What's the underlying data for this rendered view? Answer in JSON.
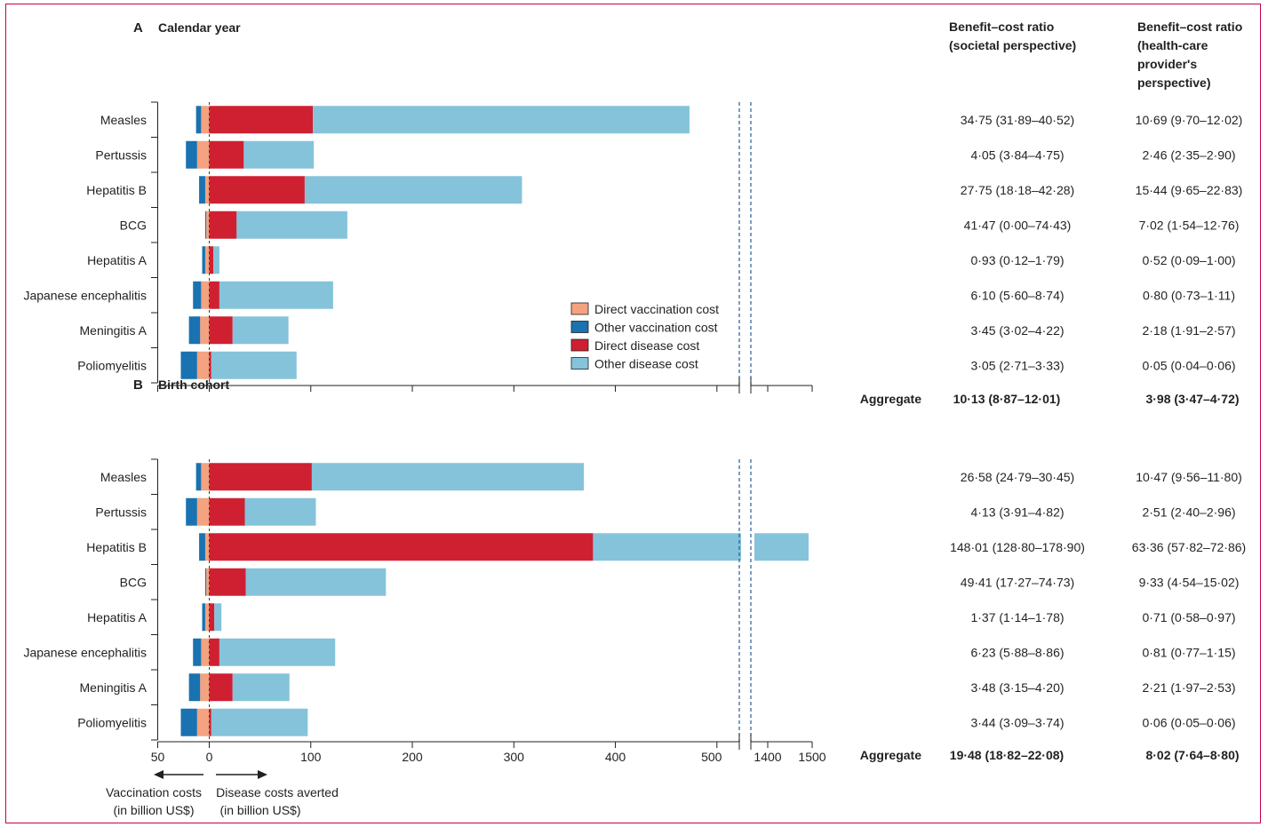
{
  "chart_data": {
    "type": "bar",
    "legend": {
      "position": "center-right",
      "entries": [
        {
          "label": "Direct vaccination cost",
          "color": "#f4a27f"
        },
        {
          "label": "Other vaccination cost",
          "color": "#1a72b0"
        },
        {
          "label": "Direct disease cost",
          "color": "#cf2032"
        },
        {
          "label": "Other disease cost",
          "color": "#85c3db"
        }
      ]
    },
    "x_ticks_left": [
      "50",
      "0",
      "100",
      "200",
      "300",
      "400",
      "500"
    ],
    "x_ticks_right": [
      "1400",
      "1500"
    ],
    "x_axis_left_label": "Vaccination costs\n(in billion US$)",
    "x_axis_right_label": "Disease costs averted\n(in billion US$)",
    "xlim_left": [
      -50,
      510
    ],
    "xlim_right": [
      1340,
      1500
    ],
    "column_headers": [
      "Benefit–cost ratio\n(societal perspective)",
      "Benefit–cost ratio\n(health-care\nprovider's\nperspective)"
    ],
    "aggregate_label": "Aggregate",
    "panels": [
      {
        "letter": "A",
        "title": "Calendar year",
        "categories": [
          "Measles",
          "Pertussis",
          "Hepatitis B",
          "BCG",
          "Hepatitis A",
          "Japanese encephalitis",
          "Meningitis A",
          "Poliomyelitis"
        ],
        "series": [
          {
            "name": "Direct vaccination cost",
            "values": [
              -8,
              -12,
              -4,
              -3,
              -4,
              -8,
              -9,
              -12
            ]
          },
          {
            "name": "Other vaccination cost",
            "values": [
              -5,
              -11,
              -6,
              -1,
              -3,
              -8,
              -11,
              -16
            ]
          },
          {
            "name": "Direct disease cost",
            "values": [
              102,
              34,
              94,
              27,
              4,
              10,
              23,
              2
            ]
          },
          {
            "name": "Other disease cost",
            "values": [
              371,
              69,
              214,
              109,
              6,
              112,
              55,
              84
            ]
          }
        ],
        "societal": [
          "34·75 (31·89–40·52)",
          "4·05 (3·84–4·75)",
          "27·75 (18·18–42·28)",
          "41·47 (0·00–74·43)",
          "0·93 (0·12–1·79)",
          "6·10 (5·60–8·74)",
          "3·45 (3·02–4·22)",
          "3·05 (2·71–3·33)"
        ],
        "provider": [
          "10·69 (9·70–12·02)",
          "2·46 (2·35–2·90)",
          "15·44 (9·65–22·83)",
          "7·02 (1·54–12·76)",
          "0·52 (0·09–1·00)",
          "0·80 (0·73–1·11)",
          "2·18 (1·91–2·57)",
          "0·05 (0·04–0·06)"
        ],
        "aggregate_societal": "10·13 (8·87–12·01)",
        "aggregate_provider": "3·98 (3·47–4·72)"
      },
      {
        "letter": "B",
        "title": "Birth cohort",
        "categories": [
          "Measles",
          "Pertussis",
          "Hepatitis B",
          "BCG",
          "Hepatitis A",
          "Japanese encephalitis",
          "Meningitis A",
          "Poliomyelitis"
        ],
        "series": [
          {
            "name": "Direct vaccination cost",
            "values": [
              -8,
              -12,
              -4,
              -3,
              -4,
              -8,
              -9,
              -12
            ]
          },
          {
            "name": "Other vaccination cost",
            "values": [
              -5,
              -11,
              -6,
              -1,
              -3,
              -8,
              -11,
              -16
            ]
          },
          {
            "name": "Direct disease cost",
            "values": [
              101,
              35,
              378,
              36,
              5,
              10,
              23,
              2
            ]
          },
          {
            "name": "Other disease cost",
            "values": [
              268,
              70,
              1114,
              138,
              7,
              114,
              56,
              95
            ]
          }
        ],
        "societal": [
          "26·58 (24·79–30·45)",
          "4·13 (3·91–4·82)",
          "148·01 (128·80–178·90)",
          "49·41 (17·27–74·73)",
          "1·37 (1·14–1·78)",
          "6·23 (5·88–8·86)",
          "3·48 (3·15–4·20)",
          "3·44 (3·09–3·74)"
        ],
        "provider": [
          "10·47 (9·56–11·80)",
          "2·51 (2·40–2·96)",
          "63·36 (57·82–72·86)",
          "9·33 (4·54–15·02)",
          "0·71 (0·58–0·97)",
          "0·81 (0·77–1·15)",
          "2·21 (1·97–2·53)",
          "0·06 (0·05–0·06)"
        ],
        "aggregate_societal": "19·48 (18·82–22·08)",
        "aggregate_provider": "8·02 (7·64–8·80)"
      }
    ]
  }
}
